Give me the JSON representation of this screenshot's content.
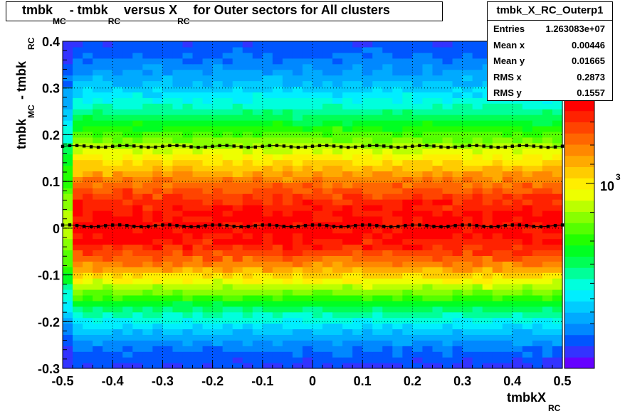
{
  "title": {
    "parts": [
      {
        "text": "tmbk",
        "sub": "MC"
      },
      {
        "text": " - tmbk",
        "sub": "RC"
      },
      {
        "text": " versus X",
        "sub": "RC"
      },
      {
        "text": " for Outer sectors for All clusters",
        "sub": ""
      }
    ]
  },
  "stats": {
    "name": "tmbk_X_RC_Outerp1",
    "rows": [
      {
        "label": "Entries",
        "value": "1.263083e+07"
      },
      {
        "label": "Mean x",
        "value": "0.00446"
      },
      {
        "label": "Mean y",
        "value": "0.01665"
      },
      {
        "label": "RMS x",
        "value": "0.2873"
      },
      {
        "label": "RMS y",
        "value": "0.1557"
      }
    ]
  },
  "colorbar": {
    "label": "10",
    "exponent": "3"
  },
  "palette": [
    "#6600ff",
    "#3333ff",
    "#0055ff",
    "#0088ff",
    "#00aaff",
    "#00ccff",
    "#00eeff",
    "#00ffdd",
    "#00ff99",
    "#00ff55",
    "#00ff22",
    "#22ff00",
    "#55ff00",
    "#88ff00",
    "#bbff00",
    "#eeff00",
    "#ffee00",
    "#ffcc00",
    "#ffaa00",
    "#ff8800",
    "#ff6600",
    "#ff4400",
    "#ff2200",
    "#ff0000"
  ],
  "chart_data": {
    "type": "heatmap",
    "xlabel": {
      "text": "tmbkX",
      "sub": "RC"
    },
    "ylabel": {
      "parts": [
        {
          "text": "tmbk",
          "sub": "MC"
        },
        {
          "text": " - tmbk",
          "sub": "RC"
        }
      ]
    },
    "xlim": [
      -0.5,
      0.5
    ],
    "ylim": [
      -0.3,
      0.4
    ],
    "xticks": [
      "-0.5",
      "-0.4",
      "-0.3",
      "-0.2",
      "-0.1",
      "0",
      "0.1",
      "0.2",
      "0.3",
      "0.4",
      "0.5"
    ],
    "yticks": [
      "-0.3",
      "-0.2",
      "-0.1",
      "0",
      "0.1",
      "0.2",
      "0.3",
      "0.4"
    ],
    "grid": true,
    "colorscale": "log",
    "density_model": {
      "peak_y": 0.0,
      "sigma_below": 0.115,
      "sigma_above": 0.16
    },
    "overlay_series": [
      {
        "name": "",
        "marker": "square",
        "y_center": 0.175,
        "y_wiggle": 0.002,
        "x": [
          -0.5,
          0.5
        ]
      },
      {
        "name": "",
        "marker": "square",
        "y_center": 0.005,
        "y_wiggle": 0.002,
        "x": [
          -0.5,
          0.5
        ]
      }
    ]
  }
}
